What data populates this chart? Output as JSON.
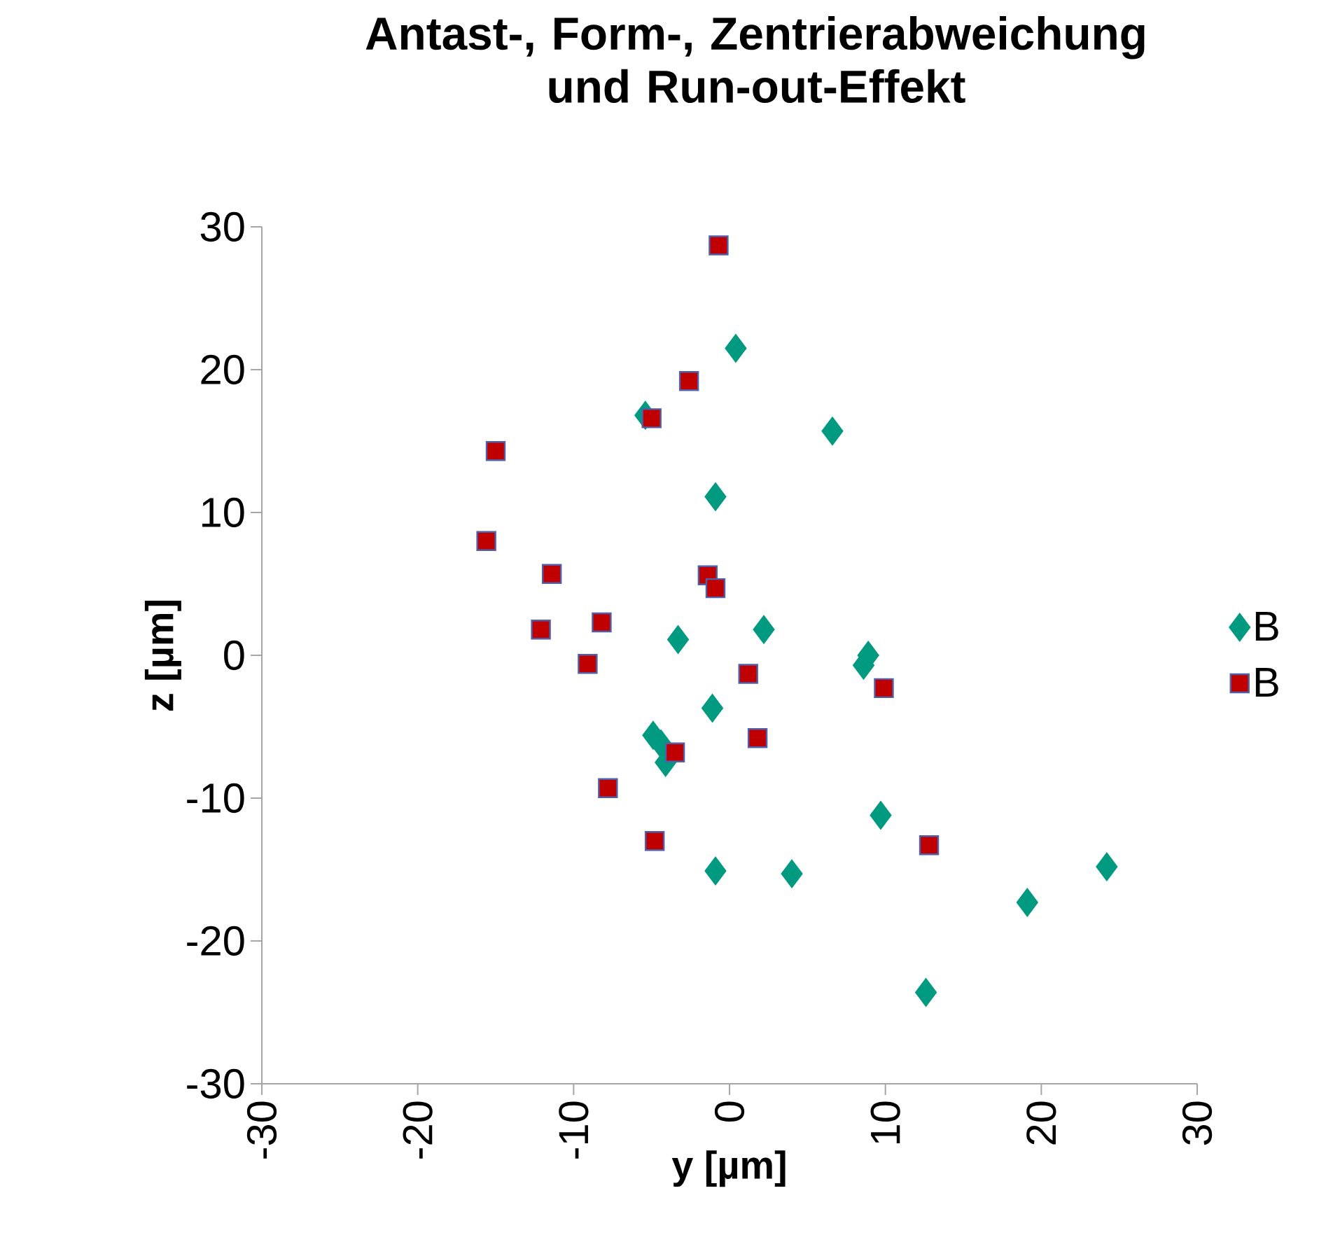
{
  "chart_data": {
    "type": "scatter",
    "title": "Antast-, Form-, Zentrierabweichung und Run-out-Effekt",
    "xlabel": "y [µm]",
    "ylabel": "z [µm]",
    "xlim": [
      -30,
      30
    ],
    "ylim": [
      -30,
      30
    ],
    "xticks": [
      -30,
      -20,
      -10,
      0,
      10,
      20,
      30
    ],
    "yticks": [
      -30,
      -20,
      -10,
      0,
      10,
      20,
      30
    ],
    "grid": false,
    "legend": "right",
    "series": [
      {
        "name": "B",
        "color": "#009a80",
        "marker": "diamond",
        "x": [
          0.4,
          6.6,
          -5.4,
          -0.9,
          -3.3,
          2.2,
          8.9,
          8.6,
          -1.1,
          -4.9,
          -4.4,
          -4.1,
          9.7,
          -0.9,
          4.0,
          24.2,
          19.1,
          12.6
        ],
        "values": [
          21.5,
          15.7,
          16.8,
          11.1,
          1.1,
          1.8,
          0.0,
          -0.7,
          -3.7,
          -5.6,
          -6.2,
          -7.5,
          -11.2,
          -15.1,
          -15.3,
          -14.8,
          -17.3,
          -23.6
        ]
      },
      {
        "name": "B",
        "color": "#c00000",
        "marker": "square",
        "x": [
          -0.7,
          -2.6,
          -5.0,
          -15.0,
          -15.6,
          -11.4,
          -1.4,
          -0.9,
          -12.1,
          -8.2,
          -9.1,
          1.2,
          9.9,
          1.8,
          -3.5,
          -7.8,
          -4.8,
          12.8
        ],
        "values": [
          28.7,
          19.2,
          16.6,
          14.3,
          8.0,
          5.7,
          5.6,
          4.7,
          1.8,
          2.3,
          -0.6,
          -1.3,
          -2.3,
          -5.8,
          -6.8,
          -9.3,
          -13.0,
          -13.3
        ]
      }
    ]
  }
}
